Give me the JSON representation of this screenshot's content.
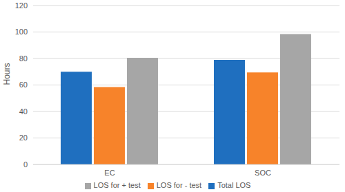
{
  "chart_data": {
    "type": "bar",
    "y_label": "Hours",
    "categories": [
      "EC",
      "SOC"
    ],
    "series": [
      {
        "name": "Total LOS",
        "color": "#1f6fbf",
        "values": [
          70,
          79
        ]
      },
      {
        "name": "LOS for - test",
        "color": "#f7832a",
        "values": [
          58.5,
          69.5
        ]
      },
      {
        "name": "LOS for + test",
        "color": "#a6a6a6",
        "values": [
          80.5,
          98.5
        ]
      }
    ],
    "ylim": [
      0,
      120
    ],
    "yticks": [
      0,
      20,
      40,
      60,
      80,
      100,
      120
    ],
    "grid": true,
    "legend": "bottom"
  }
}
